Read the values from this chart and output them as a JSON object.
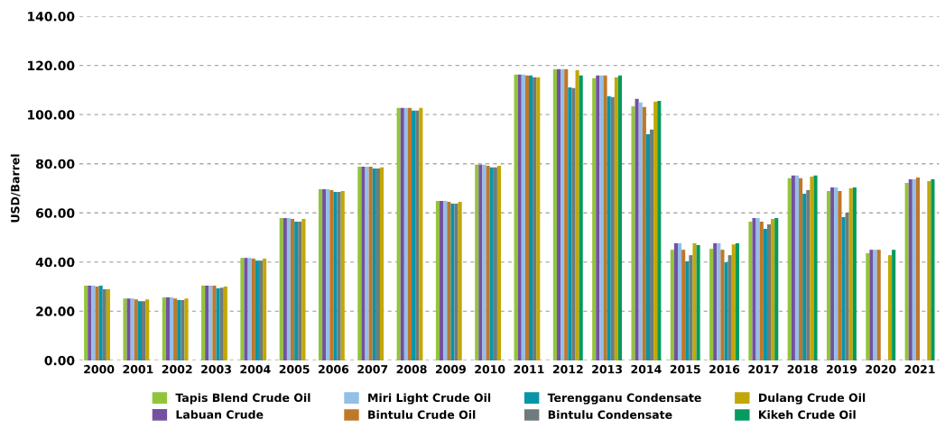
{
  "chart_data": {
    "type": "bar",
    "ylabel": "USD/Barrel",
    "categories": [
      "2000",
      "2001",
      "2002",
      "2003",
      "2004",
      "2005",
      "2006",
      "2007",
      "2008",
      "2009",
      "2010",
      "2011",
      "2012",
      "2013",
      "2014",
      "2015",
      "2016",
      "2017",
      "2018",
      "2019",
      "2020",
      "2021"
    ],
    "series": [
      {
        "name": "Tapis Blend Crude Oil",
        "color": "#92c43b",
        "values": [
          30.4,
          25.2,
          25.6,
          30.4,
          41.7,
          57.9,
          69.6,
          78.8,
          102.7,
          64.9,
          79.6,
          116.3,
          118.5,
          114.8,
          103.4,
          45.0,
          45.4,
          56.4,
          74.1,
          68.9,
          43.6,
          72.2
        ]
      },
      {
        "name": "Labuan Crude",
        "color": "#7451a0",
        "values": [
          30.4,
          25.2,
          25.6,
          30.4,
          41.7,
          57.9,
          69.6,
          78.8,
          102.7,
          64.9,
          79.6,
          116.3,
          118.5,
          115.9,
          106.4,
          47.6,
          47.6,
          57.9,
          75.2,
          70.4,
          45.0,
          73.7
        ]
      },
      {
        "name": "Miri Light Crude Oil",
        "color": "#93bfe8",
        "values": [
          30.4,
          25.2,
          25.6,
          30.4,
          41.7,
          57.9,
          69.6,
          78.8,
          102.7,
          64.9,
          79.6,
          116.3,
          118.5,
          115.9,
          104.9,
          47.6,
          47.6,
          57.9,
          75.2,
          70.4,
          45.0,
          73.7
        ]
      },
      {
        "name": "Bintulu Crude Oil",
        "color": "#bf7828",
        "values": [
          30.0,
          24.8,
          25.2,
          30.4,
          41.4,
          57.5,
          69.3,
          78.8,
          102.7,
          64.5,
          79.2,
          115.9,
          118.5,
          115.9,
          103.1,
          45.0,
          45.0,
          56.4,
          74.1,
          68.9,
          45.0,
          74.4
        ]
      },
      {
        "name": "Terengganu Condensate",
        "color": "#0795a7",
        "values": [
          30.4,
          24.1,
          24.5,
          29.3,
          40.6,
          56.4,
          68.5,
          78.1,
          101.6,
          63.8,
          78.5,
          115.9,
          111.1,
          107.5,
          92.0,
          40.3,
          39.9,
          53.5,
          67.8,
          58.3,
          null,
          null
        ]
      },
      {
        "name": "Bintulu Condensate",
        "color": "#6f7b7c",
        "values": [
          28.9,
          24.1,
          24.5,
          29.6,
          40.6,
          56.4,
          68.5,
          78.1,
          101.6,
          63.8,
          78.5,
          115.2,
          110.8,
          107.1,
          93.9,
          42.8,
          42.8,
          55.3,
          69.3,
          60.1,
          null,
          null
        ]
      },
      {
        "name": "Dulang Crude Oil",
        "color": "#c2a806",
        "values": [
          28.9,
          24.8,
          25.2,
          30.0,
          41.4,
          57.5,
          68.9,
          78.5,
          102.7,
          64.5,
          79.2,
          115.2,
          118.1,
          115.2,
          105.3,
          47.6,
          47.2,
          57.5,
          74.8,
          70.0,
          42.8,
          72.9
        ]
      },
      {
        "name": "Kikeh Crude Oil",
        "color": "#069a5e",
        "values": [
          null,
          null,
          null,
          null,
          null,
          null,
          null,
          null,
          null,
          null,
          null,
          null,
          115.9,
          115.9,
          105.6,
          46.9,
          47.6,
          57.9,
          75.2,
          70.4,
          45.0,
          73.7
        ]
      }
    ],
    "ylim": [
      0,
      140
    ],
    "yticks": [
      {
        "value": 0,
        "label": "0.00"
      },
      {
        "value": 20,
        "label": "20.00"
      },
      {
        "value": 40,
        "label": "40.00"
      },
      {
        "value": 60,
        "label": "60.00"
      },
      {
        "value": 80,
        "label": "80.00"
      },
      {
        "value": 100,
        "label": "100.00"
      },
      {
        "value": 120,
        "label": "120.00"
      },
      {
        "value": 140,
        "label": "140.00"
      }
    ],
    "grid": "y",
    "legend": "bottom"
  }
}
